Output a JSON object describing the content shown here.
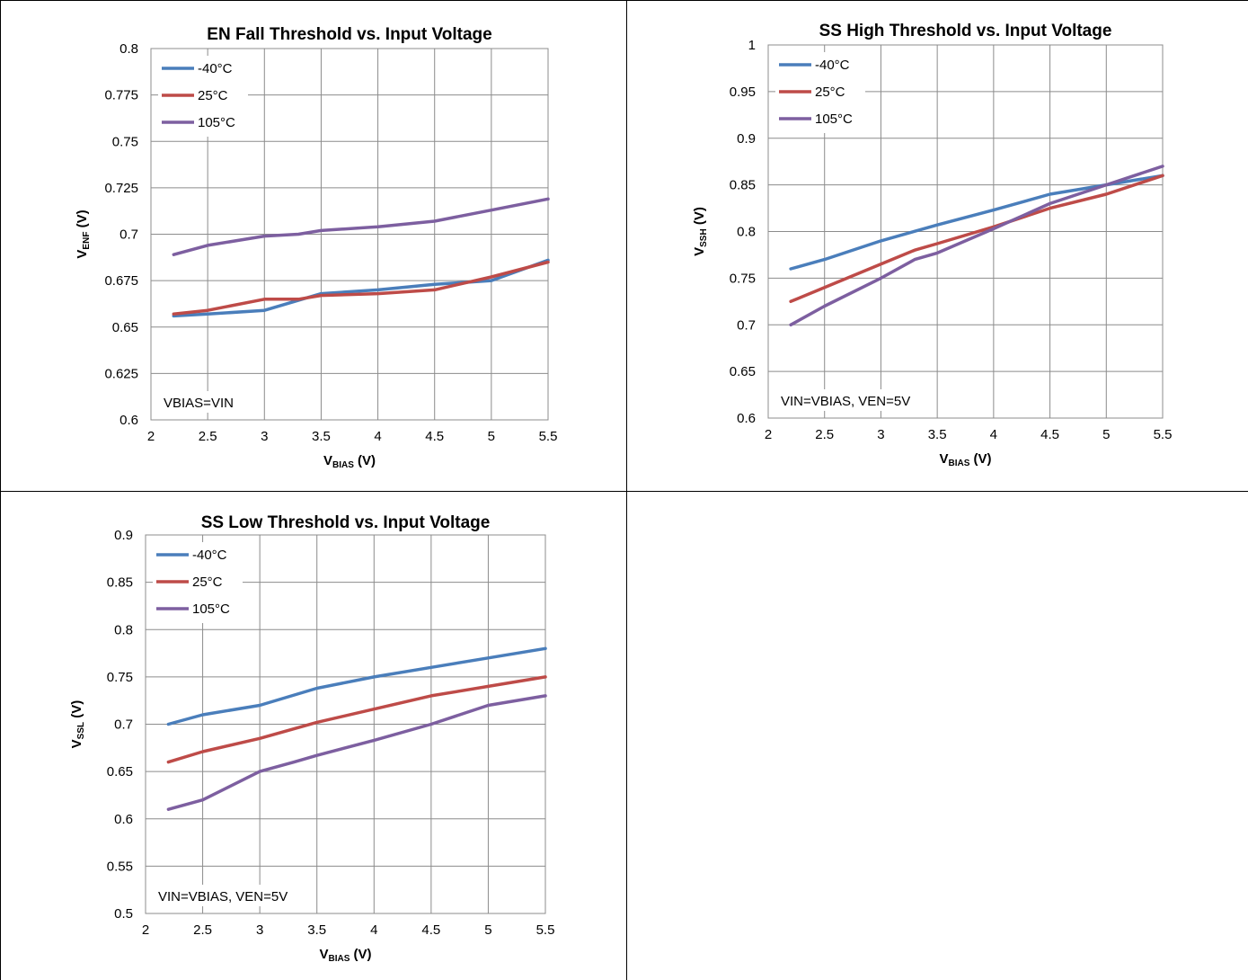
{
  "chart_data": [
    {
      "type": "line",
      "title": "EN Fall Threshold vs. Input Voltage",
      "ylabel_main": "V",
      "ylabel_sub": "ENF",
      "ylabel_unit": " (V)",
      "xlabel_main": "V",
      "xlabel_sub": "BIAS",
      "xlabel_unit": " (V)",
      "xlim": [
        2,
        5.5
      ],
      "ylim": [
        0.6,
        0.8
      ],
      "xticks": [
        2,
        2.5,
        3,
        3.5,
        4,
        4.5,
        5,
        5.5
      ],
      "yticks": [
        0.6,
        0.625,
        0.65,
        0.675,
        0.7,
        0.725,
        0.75,
        0.775,
        0.8
      ],
      "xtick_labels": [
        "2",
        "2.5",
        "3",
        "3.5",
        "4",
        "4.5",
        "5",
        "5.5"
      ],
      "ytick_labels": [
        "0.6",
        "0.625",
        "0.65",
        "0.675",
        "0.7",
        "0.725",
        "0.75",
        "0.775",
        "0.8"
      ],
      "grid": true,
      "legend_position": "top-left",
      "annotation": "VBIAS=VIN",
      "series": [
        {
          "name": "-40°C",
          "color": "#4a7ebb",
          "x": [
            2.2,
            2.5,
            3.0,
            3.5,
            4.0,
            4.5,
            5.0,
            5.5
          ],
          "y": [
            0.656,
            0.657,
            0.659,
            0.668,
            0.67,
            0.673,
            0.675,
            0.686
          ]
        },
        {
          "name": "25°C",
          "color": "#be4b48",
          "x": [
            2.2,
            2.5,
            3.0,
            3.3,
            3.5,
            4.0,
            4.5,
            5.0,
            5.5
          ],
          "y": [
            0.657,
            0.659,
            0.665,
            0.665,
            0.667,
            0.668,
            0.67,
            0.677,
            0.685
          ]
        },
        {
          "name": "105°C",
          "color": "#7d5fa0",
          "x": [
            2.2,
            2.5,
            3.0,
            3.3,
            3.5,
            4.0,
            4.5,
            5.0,
            5.5
          ],
          "y": [
            0.689,
            0.694,
            0.699,
            0.7,
            0.702,
            0.704,
            0.707,
            0.713,
            0.719
          ]
        }
      ]
    },
    {
      "type": "line",
      "title": "SS High Threshold vs. Input Voltage",
      "ylabel_main": "V",
      "ylabel_sub": "SSH",
      "ylabel_unit": " (V)",
      "xlabel_main": "V",
      "xlabel_sub": "BIAS",
      "xlabel_unit": " (V)",
      "xlim": [
        2,
        5.5
      ],
      "ylim": [
        0.6,
        1
      ],
      "xticks": [
        2,
        2.5,
        3,
        3.5,
        4,
        4.5,
        5,
        5.5
      ],
      "yticks": [
        0.6,
        0.65,
        0.7,
        0.75,
        0.8,
        0.85,
        0.9,
        0.95,
        1
      ],
      "xtick_labels": [
        "2",
        "2.5",
        "3",
        "3.5",
        "4",
        "4.5",
        "5",
        "5.5"
      ],
      "ytick_labels": [
        "0.6",
        "0.65",
        "0.7",
        "0.75",
        "0.8",
        "0.85",
        "0.9",
        "0.95",
        "1"
      ],
      "grid": true,
      "legend_position": "top-left",
      "annotation": "VIN=VBIAS, VEN=5V",
      "series": [
        {
          "name": "-40°C",
          "color": "#4a7ebb",
          "x": [
            2.2,
            2.5,
            3.0,
            3.5,
            4.0,
            4.5,
            5.0,
            5.5
          ],
          "y": [
            0.76,
            0.77,
            0.79,
            0.807,
            0.823,
            0.84,
            0.85,
            0.86
          ]
        },
        {
          "name": "25°C",
          "color": "#be4b48",
          "x": [
            2.2,
            2.5,
            3.0,
            3.3,
            3.5,
            4.0,
            4.5,
            5.0,
            5.5
          ],
          "y": [
            0.725,
            0.74,
            0.765,
            0.78,
            0.787,
            0.805,
            0.825,
            0.84,
            0.86
          ]
        },
        {
          "name": "105°C",
          "color": "#7d5fa0",
          "x": [
            2.2,
            2.5,
            3.0,
            3.3,
            3.5,
            4.0,
            4.5,
            5.0,
            5.5
          ],
          "y": [
            0.7,
            0.72,
            0.75,
            0.77,
            0.777,
            0.803,
            0.83,
            0.85,
            0.87
          ]
        }
      ]
    },
    {
      "type": "line",
      "title": "SS Low Threshold vs. Input Voltage",
      "ylabel_main": "V",
      "ylabel_sub": "SSL",
      "ylabel_unit": " (V)",
      "xlabel_main": "V",
      "xlabel_sub": "BIAS",
      "xlabel_unit": " (V)",
      "xlim": [
        2,
        5.5
      ],
      "ylim": [
        0.5,
        0.9
      ],
      "xticks": [
        2,
        2.5,
        3,
        3.5,
        4,
        4.5,
        5,
        5.5
      ],
      "yticks": [
        0.5,
        0.55,
        0.6,
        0.65,
        0.7,
        0.75,
        0.8,
        0.85,
        0.9
      ],
      "xtick_labels": [
        "2",
        "2.5",
        "3",
        "3.5",
        "4",
        "4.5",
        "5",
        "5.5"
      ],
      "ytick_labels": [
        "0.5",
        "0.55",
        "0.6",
        "0.65",
        "0.7",
        "0.75",
        "0.8",
        "0.85",
        "0.9"
      ],
      "grid": true,
      "legend_position": "top-left",
      "annotation": "VIN=VBIAS, VEN=5V",
      "series": [
        {
          "name": "-40°C",
          "color": "#4a7ebb",
          "x": [
            2.2,
            2.5,
            3.0,
            3.5,
            4.0,
            4.5,
            5.0,
            5.5
          ],
          "y": [
            0.7,
            0.71,
            0.72,
            0.738,
            0.75,
            0.76,
            0.77,
            0.78
          ]
        },
        {
          "name": "25°C",
          "color": "#be4b48",
          "x": [
            2.2,
            2.5,
            3.0,
            3.5,
            4.0,
            4.5,
            5.0,
            5.5
          ],
          "y": [
            0.66,
            0.671,
            0.685,
            0.702,
            0.716,
            0.73,
            0.74,
            0.75
          ]
        },
        {
          "name": "105°C",
          "color": "#7d5fa0",
          "x": [
            2.2,
            2.5,
            3.0,
            3.3,
            3.5,
            4.0,
            4.5,
            5.0,
            5.5
          ],
          "y": [
            0.61,
            0.62,
            0.65,
            0.66,
            0.667,
            0.683,
            0.7,
            0.72,
            0.73
          ]
        }
      ]
    }
  ]
}
